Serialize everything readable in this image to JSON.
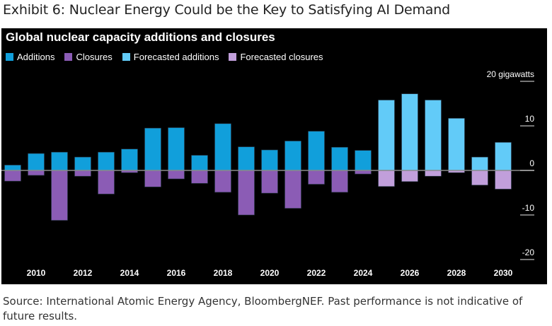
{
  "header": {
    "exhibit_title": "Exhibit 6: Nuclear Energy Could be the Key to Satisfying AI Demand"
  },
  "footer": {
    "source": "Source: International Atomic Energy Agency, BloombergNEF. Past performance is not indicative of future results."
  },
  "chart_data": {
    "type": "bar",
    "title": "Global nuclear capacity additions and closures",
    "ylabel": "20 gigawatts",
    "ylim": [
      -22,
      22
    ],
    "yticks": [
      20,
      10,
      0,
      -10,
      -20
    ],
    "ytick_labels": [
      "20 gigawatts",
      "10",
      "0",
      "-10",
      "-20"
    ],
    "xtick_labels": [
      "2010",
      "2012",
      "2014",
      "2016",
      "2018",
      "2020",
      "2022",
      "2024",
      "2026",
      "2028",
      "2030"
    ],
    "legend_position": "top-left",
    "grid": false,
    "categories": [
      2009,
      2010,
      2011,
      2012,
      2013,
      2014,
      2015,
      2016,
      2017,
      2018,
      2019,
      2020,
      2021,
      2022,
      2023,
      2024,
      2025,
      2026,
      2027,
      2028,
      2029,
      2030
    ],
    "series": [
      {
        "name": "Additions",
        "color": "#119fdb",
        "values": [
          1.2,
          3.8,
          4.1,
          3.0,
          4.1,
          4.8,
          9.5,
          9.6,
          3.4,
          10.5,
          5.3,
          4.6,
          6.6,
          8.8,
          5.2,
          4.5,
          null,
          null,
          null,
          null,
          null,
          null
        ]
      },
      {
        "name": "Closures",
        "color": "#8b5cb5",
        "values": [
          -2.4,
          -1.1,
          -11.2,
          -1.3,
          -5.3,
          -0.5,
          -3.7,
          -1.9,
          -2.9,
          -4.9,
          -10.0,
          -5.1,
          -8.5,
          -3.1,
          -4.9,
          -0.8,
          null,
          null,
          null,
          null,
          null,
          null
        ]
      },
      {
        "name": "Forecasted additions",
        "color": "#62cbf8",
        "values": [
          null,
          null,
          null,
          null,
          null,
          null,
          null,
          null,
          null,
          null,
          null,
          null,
          null,
          null,
          null,
          null,
          15.8,
          17.2,
          15.8,
          11.7,
          3.0,
          6.3
        ]
      },
      {
        "name": "Forecasted closures",
        "color": "#c19fdb",
        "values": [
          null,
          null,
          null,
          null,
          null,
          null,
          null,
          null,
          null,
          null,
          null,
          null,
          null,
          null,
          null,
          null,
          -3.6,
          -2.5,
          -1.3,
          -0.5,
          -3.3,
          -4.2
        ]
      }
    ]
  }
}
